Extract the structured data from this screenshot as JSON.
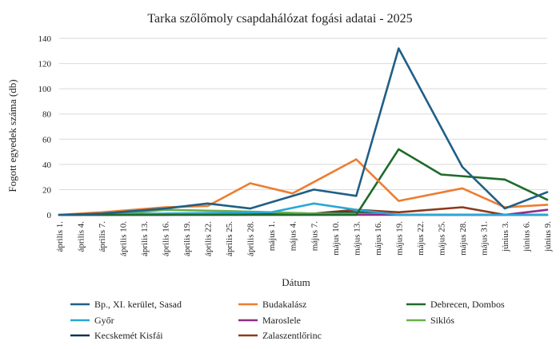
{
  "chart_data": {
    "type": "line",
    "title": "Tarka szőlőmoly csapdahálózat fogási adatai - 2025",
    "xlabel": "Dátum",
    "ylabel": "Fogott egyedek száma (db)",
    "ylim": [
      0,
      140
    ],
    "yticks": [
      0,
      20,
      40,
      60,
      80,
      100,
      120,
      140
    ],
    "grid": "horizontal",
    "legend_position": "bottom",
    "categories": [
      "április 1.",
      "április 4.",
      "április 7.",
      "április 10.",
      "április 13.",
      "április 16.",
      "április 19.",
      "április 22.",
      "április 25.",
      "április 28.",
      "május 1.",
      "május 4.",
      "május 7.",
      "május 10.",
      "május 13.",
      "május 16.",
      "május 19.",
      "május 22.",
      "május 25.",
      "május 28.",
      "május 31.",
      "június 3.",
      "június 6.",
      "június 9."
    ],
    "series": [
      {
        "name": "Bp., XI. kerület, Sasad",
        "color": "#1f5f86",
        "x": [
          0,
          2,
          5,
          7,
          9,
          12,
          14,
          16,
          19,
          21,
          23
        ],
        "values": [
          0,
          1,
          5,
          9,
          5,
          20,
          15,
          132,
          38,
          5,
          18
        ]
      },
      {
        "name": "Budakalász",
        "color": "#ed7d31",
        "x": [
          0,
          2,
          5,
          7,
          9,
          11,
          14,
          16,
          19,
          21,
          23
        ],
        "values": [
          0,
          2,
          6,
          7,
          25,
          17,
          44,
          11,
          21,
          6,
          8
        ]
      },
      {
        "name": "Debrecen, Dombos",
        "color": "#1e6b2a",
        "x": [
          0,
          9,
          14,
          16,
          18,
          21,
          23
        ],
        "values": [
          0,
          0,
          0,
          52,
          32,
          28,
          12
        ]
      },
      {
        "name": "Győr",
        "color": "#2aa7d8",
        "x": [
          0,
          10,
          12,
          14,
          16,
          23
        ],
        "values": [
          0,
          2,
          9,
          4,
          0,
          0
        ]
      },
      {
        "name": "Maroslele",
        "color": "#8e2e8e",
        "x": [
          0,
          21,
          23
        ],
        "values": [
          0,
          0,
          4
        ]
      },
      {
        "name": "Siklós",
        "color": "#6ab04c",
        "x": [
          0,
          3,
          5,
          8,
          10,
          12,
          14,
          16,
          23
        ],
        "values": [
          0,
          1,
          4,
          3,
          2,
          1,
          1,
          0,
          0
        ]
      },
      {
        "name": "Kecskemét Kisfái",
        "color": "#16324f",
        "x": [
          0,
          5,
          8,
          12,
          14,
          16,
          23
        ],
        "values": [
          0,
          0,
          1,
          1,
          2,
          0,
          0
        ]
      },
      {
        "name": "Zalaszentlőrinc",
        "color": "#8b3a1a",
        "x": [
          0,
          7,
          9,
          12,
          14,
          16,
          19,
          21,
          23
        ],
        "values": [
          0,
          1,
          2,
          1,
          4,
          2,
          6,
          0,
          0
        ]
      }
    ]
  }
}
